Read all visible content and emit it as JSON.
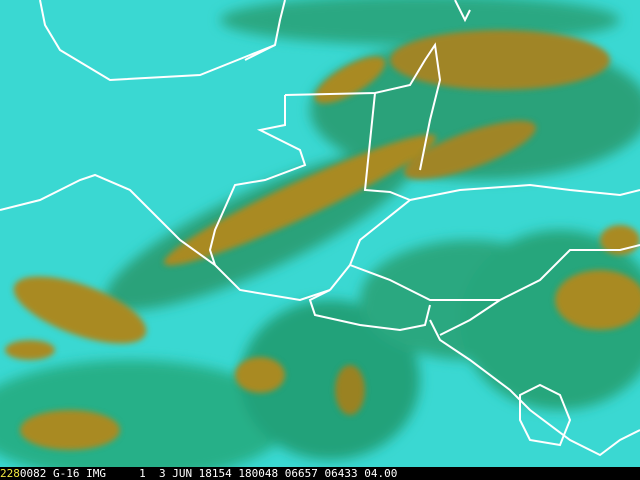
{
  "image": {
    "type": "satellite-imagery",
    "overlay": "political-boundaries",
    "colors": {
      "clear": "#35dcd6",
      "low_cloud": "#1fa870",
      "high_cloud": "#a88a20",
      "borders": "#ffffff"
    }
  },
  "status_bar": {
    "frame_number": "228",
    "info": "0082 G-16 IMG     1  3 JUN 18154 180048 06657 06433 04.00",
    "frame_number_color": "#f2e640"
  }
}
